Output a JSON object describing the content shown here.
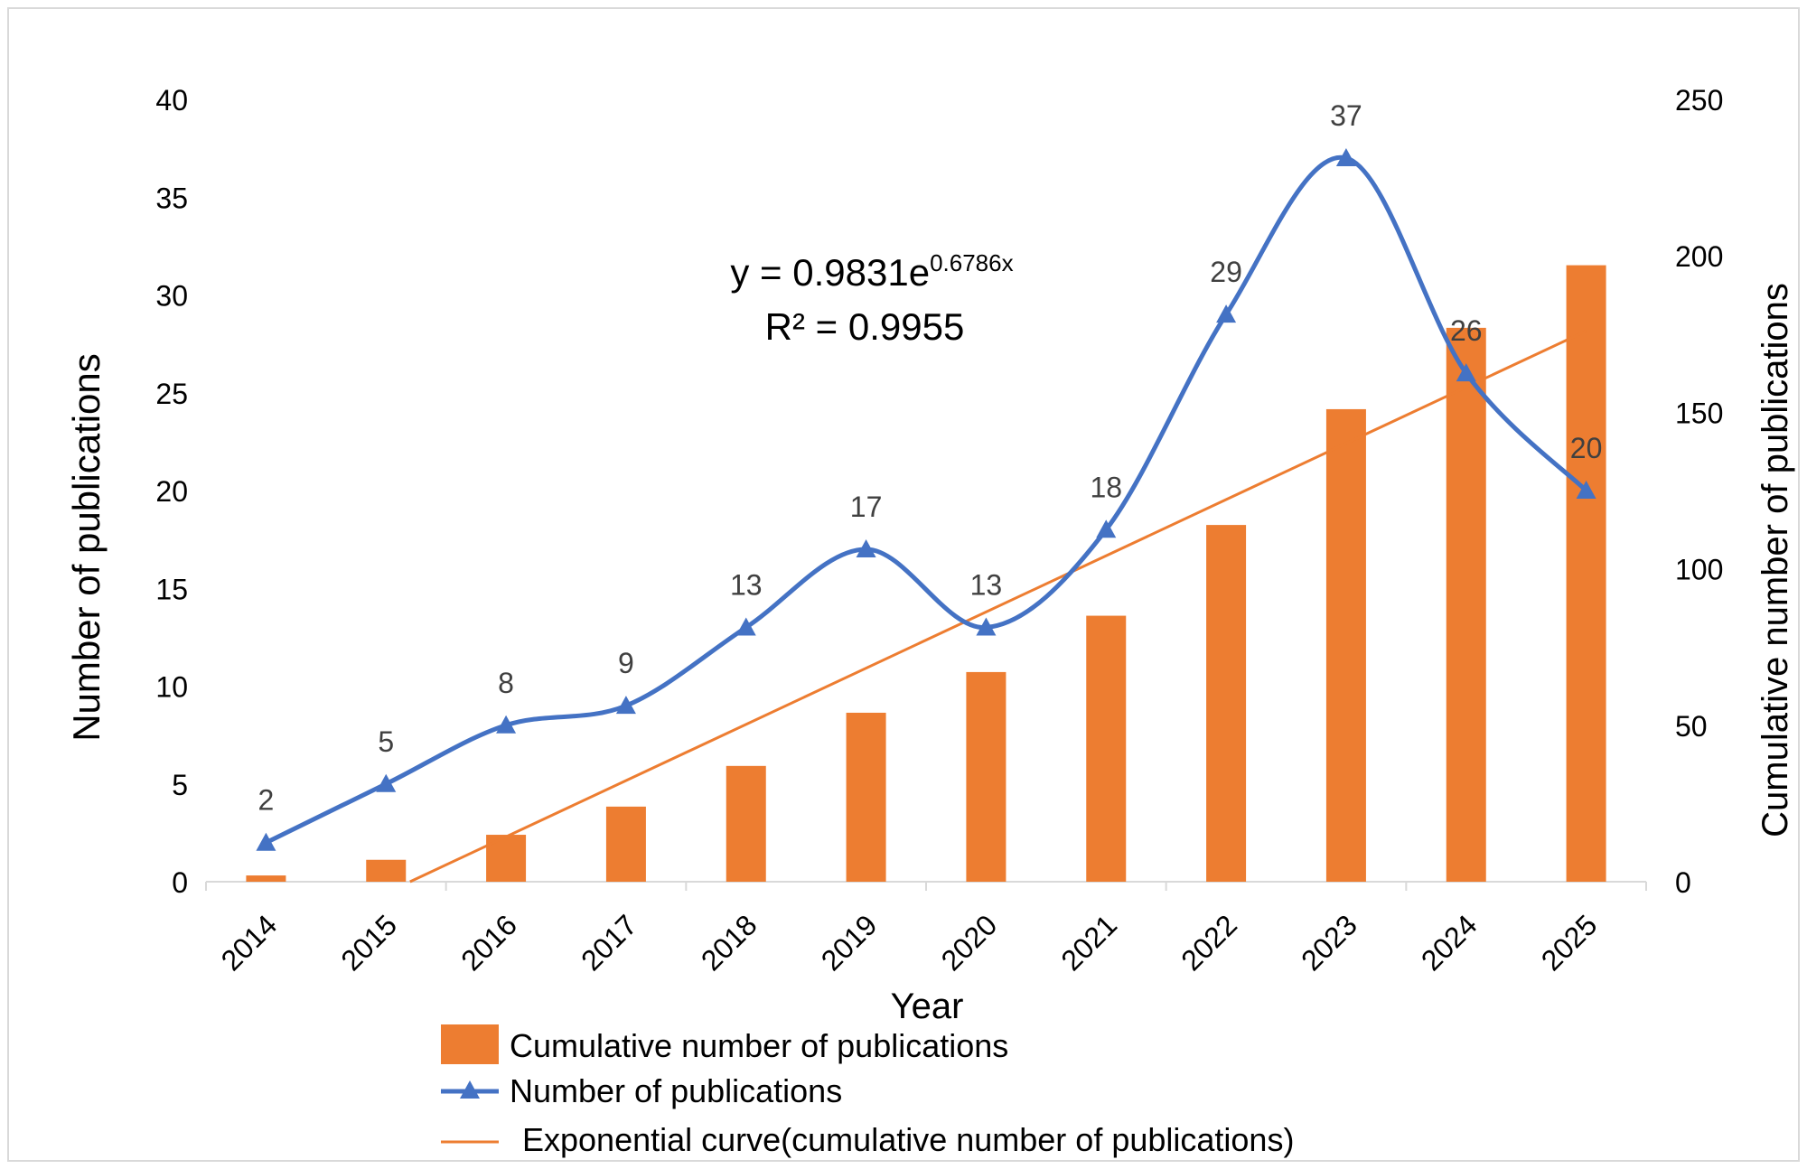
{
  "chart_data": {
    "type": "bar+line",
    "title": "",
    "categories": [
      "2014",
      "2015",
      "2016",
      "2017",
      "2018",
      "2019",
      "2020",
      "2021",
      "2022",
      "2023",
      "2024",
      "2025"
    ],
    "series": [
      {
        "name": "Cumulative number of publications",
        "kind": "bar",
        "axis": "right",
        "color": "#ED7D31",
        "values": [
          2,
          7,
          15,
          24,
          37,
          54,
          67,
          85,
          114,
          151,
          177,
          197
        ]
      },
      {
        "name": "Number of publications",
        "kind": "line",
        "marker": "triangle",
        "axis": "left",
        "color": "#4472C4",
        "values": [
          2,
          5,
          8,
          9,
          13,
          17,
          13,
          18,
          29,
          37,
          26,
          20
        ],
        "data_labels": [
          "2",
          "5",
          "8",
          "9",
          "13",
          "17",
          "13",
          "18",
          "29",
          "37",
          "26",
          "20"
        ]
      },
      {
        "name": "Exponential curve(cumulative number of publications)",
        "kind": "trendline",
        "axis": "right",
        "color": "#ED7D31",
        "start": {
          "x_index": 1.2,
          "value": 0
        },
        "end": {
          "x_index": 11,
          "value": 176
        }
      }
    ],
    "xlabel": "Year",
    "ylabel_left": "Number of publications",
    "ylabel_right": "Cumulative number of publications",
    "y_left": {
      "min": 0,
      "max": 40,
      "ticks": [
        "0",
        "5",
        "10",
        "15",
        "20",
        "25",
        "30",
        "35",
        "40"
      ]
    },
    "y_right": {
      "min": 0,
      "max": 250,
      "ticks": [
        "0",
        "50",
        "100",
        "150",
        "200",
        "250"
      ]
    },
    "equation": {
      "base": "y = 0.9831e",
      "exponent": "0.6786x",
      "r2": "R² = 0.9955"
    },
    "legend_position": "bottom",
    "grid": false
  }
}
